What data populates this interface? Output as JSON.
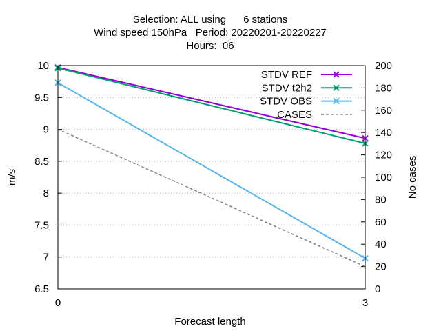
{
  "chart_data": {
    "type": "line",
    "title_lines": [
      "Selection: ALL using      6 stations",
      "Wind speed 150hPa   Period: 20220201-20220227",
      "Hours:  06"
    ],
    "xlabel": "Forecast length",
    "ylabel": "m/s",
    "y2label": "No cases",
    "x": [
      0,
      3
    ],
    "xlim": [
      0,
      3
    ],
    "xticks": [
      "0",
      "3"
    ],
    "ylim": [
      6.5,
      10
    ],
    "yticks": [
      "6.5",
      "7",
      "7.5",
      "8",
      "8.5",
      "9",
      "9.5",
      "10"
    ],
    "y2lim": [
      0,
      200
    ],
    "y2ticks": [
      "0",
      "20",
      "40",
      "60",
      "80",
      "100",
      "120",
      "140",
      "160",
      "180",
      "200"
    ],
    "grid": true,
    "legend_position": "top-right",
    "series": [
      {
        "name": "STDV REF",
        "axis": "y",
        "values": [
          9.97,
          8.86
        ],
        "color": "#9400d3",
        "marker": "x",
        "dash": false
      },
      {
        "name": "STDV t2h2",
        "axis": "y",
        "values": [
          9.96,
          8.78
        ],
        "color": "#009e73",
        "marker": "x",
        "dash": false
      },
      {
        "name": "STDV OBS",
        "axis": "y",
        "values": [
          9.73,
          6.98
        ],
        "color": "#56b4e9",
        "marker": "x",
        "dash": false
      },
      {
        "name": "CASES",
        "axis": "y2",
        "values": [
          143,
          20
        ],
        "color": "#808080",
        "marker": "none",
        "dash": true
      }
    ]
  }
}
